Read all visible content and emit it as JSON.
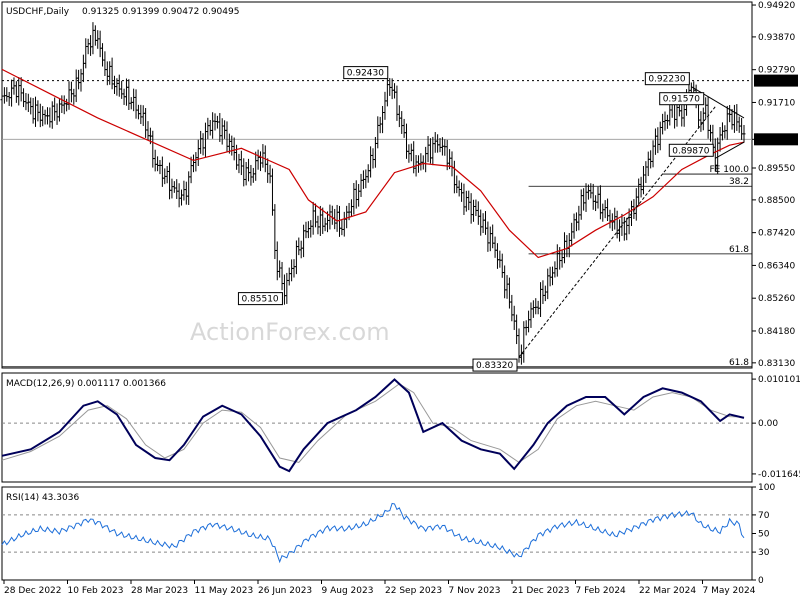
{
  "header": {
    "symbol": "USDCHF,Daily",
    "ohlc": "0.91325 0.91399 0.90472 0.90495"
  },
  "watermark": "ActionForex.com",
  "colors": {
    "candle": "#000000",
    "sma": "#cc0000",
    "macd": "#00005a",
    "signal": "#999999",
    "rsi": "#1e6fd9",
    "grid": "#000000"
  },
  "chart_data": [
    {
      "type": "candlestick",
      "title": "USDCHF,Daily",
      "ylim": [
        0.8296,
        0.9502
      ],
      "price_ticks": [
        "0.94920",
        "0.93870",
        "0.92790",
        "0.91710",
        "0.90495",
        "0.89550",
        "0.88500",
        "0.87420",
        "0.86340",
        "0.85260",
        "0.84180",
        "0.83130"
      ],
      "price_tick_values": [
        0.9492,
        0.9387,
        0.9279,
        0.9171,
        0.90495,
        0.8955,
        0.885,
        0.8742,
        0.8634,
        0.8526,
        0.8418,
        0.8313
      ],
      "current_price": {
        "label": "0.90495",
        "value": 0.90495
      },
      "resistance": {
        "label": "0.92430",
        "value": 0.9243
      },
      "x_labels": [
        "28 Dec 2022",
        "10 Feb 2023",
        "28 Mar 2023",
        "11 May 2023",
        "26 Jun 2023",
        "9 Aug 2023",
        "22 Sep 2023",
        "7 Nov 2023",
        "21 Dec 2023",
        "7 Feb 2024",
        "22 Mar 2024",
        "7 May 2024"
      ],
      "price_path": [
        [
          0,
          0.918
        ],
        [
          3,
          0.922
        ],
        [
          6,
          0.915
        ],
        [
          9,
          0.912
        ],
        [
          12,
          0.915
        ],
        [
          14,
          0.919
        ],
        [
          16,
          0.924
        ],
        [
          18,
          0.937
        ],
        [
          20,
          0.939
        ],
        [
          21,
          0.93
        ],
        [
          24,
          0.922
        ],
        [
          27,
          0.918
        ],
        [
          30,
          0.91
        ],
        [
          32,
          0.897
        ],
        [
          34,
          0.893
        ],
        [
          36,
          0.888
        ],
        [
          38,
          0.886
        ],
        [
          40,
          0.898
        ],
        [
          42,
          0.905
        ],
        [
          44,
          0.911
        ],
        [
          46,
          0.908
        ],
        [
          48,
          0.902
        ],
        [
          50,
          0.895
        ],
        [
          52,
          0.893
        ],
        [
          54,
          0.9
        ],
        [
          56,
          0.893
        ],
        [
          57,
          0.868
        ],
        [
          58,
          0.86
        ],
        [
          59,
          0.8551
        ],
        [
          61,
          0.865
        ],
        [
          63,
          0.873
        ],
        [
          65,
          0.879
        ],
        [
          67,
          0.877
        ],
        [
          69,
          0.88
        ],
        [
          71,
          0.876
        ],
        [
          73,
          0.884
        ],
        [
          75,
          0.89
        ],
        [
          77,
          0.897
        ],
        [
          79,
          0.911
        ],
        [
          81,
          0.9243
        ],
        [
          83,
          0.912
        ],
        [
          85,
          0.9
        ],
        [
          87,
          0.896
        ],
        [
          89,
          0.901
        ],
        [
          91,
          0.904
        ],
        [
          93,
          0.9
        ],
        [
          95,
          0.889
        ],
        [
          97,
          0.884
        ],
        [
          99,
          0.881
        ],
        [
          101,
          0.875
        ],
        [
          103,
          0.869
        ],
        [
          105,
          0.858
        ],
        [
          107,
          0.845
        ],
        [
          108,
          0.8332
        ],
        [
          110,
          0.847
        ],
        [
          112,
          0.851
        ],
        [
          114,
          0.858
        ],
        [
          116,
          0.865
        ],
        [
          118,
          0.87
        ],
        [
          120,
          0.879
        ],
        [
          122,
          0.888
        ],
        [
          124,
          0.885
        ],
        [
          126,
          0.881
        ],
        [
          128,
          0.877
        ],
        [
          130,
          0.875
        ],
        [
          132,
          0.883
        ],
        [
          134,
          0.893
        ],
        [
          136,
          0.902
        ],
        [
          138,
          0.91
        ],
        [
          140,
          0.915
        ],
        [
          142,
          0.913
        ],
        [
          144,
          0.9223
        ],
        [
          146,
          0.91
        ],
        [
          147,
          0.9157
        ],
        [
          148,
          0.905
        ],
        [
          149,
          0.8987
        ],
        [
          150,
          0.906
        ],
        [
          152,
          0.913
        ],
        [
          154,
          0.91
        ],
        [
          155,
          0.905
        ]
      ],
      "sma_path": [
        [
          0,
          0.928
        ],
        [
          10,
          0.92
        ],
        [
          20,
          0.912
        ],
        [
          30,
          0.905
        ],
        [
          40,
          0.898
        ],
        [
          50,
          0.902
        ],
        [
          60,
          0.895
        ],
        [
          64,
          0.885
        ],
        [
          70,
          0.878
        ],
        [
          76,
          0.881
        ],
        [
          82,
          0.894
        ],
        [
          88,
          0.897
        ],
        [
          94,
          0.896
        ],
        [
          100,
          0.888
        ],
        [
          106,
          0.875
        ],
        [
          112,
          0.866
        ],
        [
          118,
          0.869
        ],
        [
          124,
          0.875
        ],
        [
          130,
          0.88
        ],
        [
          136,
          0.886
        ],
        [
          142,
          0.895
        ],
        [
          148,
          0.9
        ],
        [
          152,
          0.903
        ],
        [
          155,
          0.904
        ]
      ],
      "annotations": [
        {
          "text": "0.92430",
          "x": 81,
          "y": 0.9243,
          "kind": "box"
        },
        {
          "text": "0.85510",
          "x": 59,
          "y": 0.8551,
          "kind": "box"
        },
        {
          "text": "0.83320",
          "x": 108,
          "y": 0.8332,
          "kind": "box"
        },
        {
          "text": "0.92230",
          "x": 144,
          "y": 0.9223,
          "kind": "box"
        },
        {
          "text": "0.91570",
          "x": 147,
          "y": 0.9157,
          "kind": "box"
        },
        {
          "text": "0.89870",
          "x": 149,
          "y": 0.8987,
          "kind": "box"
        }
      ],
      "fib_levels": [
        {
          "label": "FE 100.0",
          "value": 0.8935
        },
        {
          "label": "38.2",
          "value": 0.8895
        },
        {
          "label": "61.8",
          "value": 0.8672
        },
        {
          "label": "61.8",
          "value": 0.83
        }
      ]
    },
    {
      "type": "line",
      "title": "MACD(12,26,9) 0.001117 0.001366",
      "ylim": [
        -0.0135,
        0.0115
      ],
      "ticks": [
        "0.010101",
        "0.00",
        "-0.011645"
      ],
      "tick_values": [
        0.010101,
        0.0,
        -0.011645
      ],
      "series": [
        {
          "name": "MACD",
          "values": [
            [
              0,
              -0.0075
            ],
            [
              6,
              -0.006
            ],
            [
              12,
              -0.002
            ],
            [
              17,
              0.004
            ],
            [
              20,
              0.005
            ],
            [
              24,
              0.002
            ],
            [
              28,
              -0.005
            ],
            [
              32,
              -0.008
            ],
            [
              35,
              -0.0085
            ],
            [
              38,
              -0.005
            ],
            [
              42,
              0.0015
            ],
            [
              46,
              0.004
            ],
            [
              50,
              0.002
            ],
            [
              54,
              -0.003
            ],
            [
              58,
              -0.01
            ],
            [
              60,
              -0.011
            ],
            [
              63,
              -0.006
            ],
            [
              68,
              0.0
            ],
            [
              74,
              0.003
            ],
            [
              78,
              0.006
            ],
            [
              82,
              0.01
            ],
            [
              85,
              0.007
            ],
            [
              88,
              -0.002
            ],
            [
              92,
              0.0
            ],
            [
              96,
              -0.004
            ],
            [
              100,
              -0.006
            ],
            [
              104,
              -0.007
            ],
            [
              107,
              -0.0105
            ],
            [
              111,
              -0.005
            ],
            [
              114,
              0.0
            ],
            [
              118,
              0.004
            ],
            [
              122,
              0.006
            ],
            [
              126,
              0.006
            ],
            [
              130,
              0.002
            ],
            [
              134,
              0.006
            ],
            [
              138,
              0.008
            ],
            [
              142,
              0.007
            ],
            [
              146,
              0.005
            ],
            [
              150,
              0.0005
            ],
            [
              152,
              0.002
            ],
            [
              155,
              0.0012
            ]
          ]
        },
        {
          "name": "Signal",
          "values": [
            [
              0,
              -0.0085
            ],
            [
              6,
              -0.0065
            ],
            [
              12,
              -0.003
            ],
            [
              18,
              0.003
            ],
            [
              22,
              0.004
            ],
            [
              26,
              0.001
            ],
            [
              30,
              -0.005
            ],
            [
              34,
              -0.008
            ],
            [
              38,
              -0.006
            ],
            [
              42,
              0.0
            ],
            [
              46,
              0.003
            ],
            [
              50,
              0.0025
            ],
            [
              54,
              -0.001
            ],
            [
              58,
              -0.008
            ],
            [
              62,
              -0.009
            ],
            [
              66,
              -0.004
            ],
            [
              72,
              0.002
            ],
            [
              78,
              0.005
            ],
            [
              83,
              0.009
            ],
            [
              86,
              0.007
            ],
            [
              90,
              0.0
            ],
            [
              94,
              -0.001
            ],
            [
              98,
              -0.004
            ],
            [
              104,
              -0.006
            ],
            [
              108,
              -0.009
            ],
            [
              112,
              -0.006
            ],
            [
              116,
              0.001
            ],
            [
              120,
              0.004
            ],
            [
              124,
              0.005
            ],
            [
              128,
              0.004
            ],
            [
              132,
              0.003
            ],
            [
              136,
              0.006
            ],
            [
              140,
              0.007
            ],
            [
              144,
              0.006
            ],
            [
              148,
              0.003
            ],
            [
              152,
              0.0015
            ],
            [
              155,
              0.0014
            ]
          ]
        }
      ]
    },
    {
      "type": "line",
      "title": "RSI(14) 43.3036",
      "ylim": [
        0,
        100
      ],
      "ticks": [
        "100",
        "70",
        "50",
        "30",
        "0"
      ],
      "tick_values": [
        100,
        70,
        50,
        30,
        0
      ],
      "series": [
        {
          "name": "RSI",
          "values": [
            [
              0,
              38
            ],
            [
              4,
              48
            ],
            [
              8,
              55
            ],
            [
              12,
              52
            ],
            [
              16,
              60
            ],
            [
              18,
              65
            ],
            [
              20,
              62
            ],
            [
              24,
              50
            ],
            [
              28,
              45
            ],
            [
              32,
              40
            ],
            [
              36,
              36
            ],
            [
              40,
              52
            ],
            [
              44,
              60
            ],
            [
              48,
              55
            ],
            [
              52,
              48
            ],
            [
              56,
              44
            ],
            [
              58,
              22
            ],
            [
              60,
              28
            ],
            [
              64,
              45
            ],
            [
              68,
              56
            ],
            [
              72,
              55
            ],
            [
              76,
              60
            ],
            [
              80,
              72
            ],
            [
              82,
              82
            ],
            [
              84,
              68
            ],
            [
              88,
              55
            ],
            [
              92,
              58
            ],
            [
              96,
              45
            ],
            [
              100,
              40
            ],
            [
              104,
              35
            ],
            [
              106,
              30
            ],
            [
              108,
              25
            ],
            [
              112,
              48
            ],
            [
              116,
              58
            ],
            [
              120,
              62
            ],
            [
              124,
              55
            ],
            [
              128,
              48
            ],
            [
              132,
              56
            ],
            [
              136,
              65
            ],
            [
              140,
              70
            ],
            [
              144,
              72
            ],
            [
              146,
              60
            ],
            [
              148,
              55
            ],
            [
              150,
              52
            ],
            [
              152,
              63
            ],
            [
              154,
              60
            ],
            [
              155,
              43
            ]
          ]
        }
      ]
    }
  ]
}
